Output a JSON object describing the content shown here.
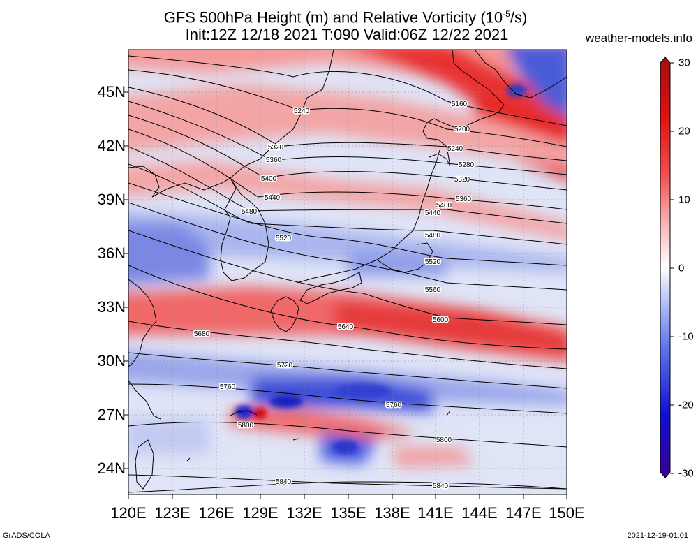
{
  "title": {
    "line1_prefix": "GFS 500hPa Height (m) and Relative Vorticity (10",
    "line1_exp": "-5",
    "line1_suffix": "/s)",
    "line2": "Init:12Z 12/18 2021 T:090 Valid:06Z 12/22 2021"
  },
  "site": "weather-models.info",
  "footer": {
    "left": "GrADS/COLA",
    "right": "2021-12-19-01:01"
  },
  "lat_labels": [
    "24N",
    "27N",
    "30N",
    "33N",
    "36N",
    "39N",
    "42N",
    "45N"
  ],
  "lon_labels": [
    "120E",
    "123E",
    "126E",
    "129E",
    "132E",
    "135E",
    "138E",
    "141E",
    "144E",
    "147E",
    "150E"
  ],
  "colorbar": {
    "labels": [
      "30",
      "20",
      "10",
      "0",
      "-10",
      "-20",
      "-30"
    ],
    "colors": [
      "#3a0090",
      "#1010d0",
      "#5a6ee8",
      "#b4c4f4",
      "#ffffff",
      "#f8b8b8",
      "#f05050",
      "#e01010",
      "#a01010"
    ]
  },
  "contours": [
    {
      "label": "5160"
    },
    {
      "label": "5200"
    },
    {
      "label": "5240"
    },
    {
      "label": "5240"
    },
    {
      "label": "5280"
    },
    {
      "label": "5320"
    },
    {
      "label": "5320"
    },
    {
      "label": "5360"
    },
    {
      "label": "5360"
    },
    {
      "label": "5400"
    },
    {
      "label": "5400"
    },
    {
      "label": "5440"
    },
    {
      "label": "5440"
    },
    {
      "label": "5480"
    },
    {
      "label": "5480"
    },
    {
      "label": "5520"
    },
    {
      "label": "5520"
    },
    {
      "label": "5560"
    },
    {
      "label": "5600"
    },
    {
      "label": "5640"
    },
    {
      "label": "5680"
    },
    {
      "label": "5720"
    },
    {
      "label": "5760"
    },
    {
      "label": "5760"
    },
    {
      "label": "5800"
    },
    {
      "label": "5800"
    },
    {
      "label": "5840"
    },
    {
      "label": "5840"
    }
  ]
}
